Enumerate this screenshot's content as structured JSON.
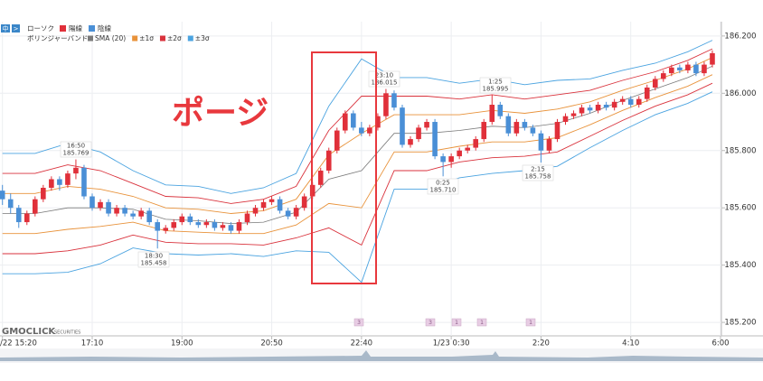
{
  "chart_data": {
    "type": "candlestick",
    "toolbar": [
      "中",
      ">"
    ],
    "legend_rows": [
      [
        "ローソク"
      ],
      [
        "ボリンジャーバンド"
      ]
    ],
    "bull": {
      "name": "陽線",
      "color": "#e0303a"
    },
    "bear": {
      "name": "陰線",
      "color": "#4a8fd6"
    },
    "callout": "ポージ",
    "watermark": [
      "GMOCLICK",
      "SECURITIES"
    ],
    "xlim": [
      -0.3,
      88
    ],
    "xticks": [
      {
        "value": 0,
        "label": "/22 15:20"
      },
      {
        "value": 11,
        "label": "17:10"
      },
      {
        "value": 22,
        "label": "19:00"
      },
      {
        "value": 33,
        "label": "20:50"
      },
      {
        "value": 44,
        "label": "22:40"
      },
      {
        "value": 55,
        "label": "1/23 0:30"
      },
      {
        "value": 66,
        "label": "2:20"
      },
      {
        "value": 77,
        "label": "4:10"
      },
      {
        "value": 88,
        "label": "6:00"
      }
    ],
    "ylim": [
      185.153,
      186.25
    ],
    "yticks": [
      {
        "value": 186.2,
        "label": "186.200"
      },
      {
        "value": 186.0,
        "label": "186.000"
      },
      {
        "value": 185.8,
        "label": "185.800"
      },
      {
        "value": 185.6,
        "label": "185.600"
      },
      {
        "value": 185.4,
        "label": "185.400"
      },
      {
        "value": 185.2,
        "label": "185.200"
      }
    ],
    "grid": true,
    "candles": {
      "x": [
        0,
        1,
        2,
        3,
        4,
        5,
        6,
        7,
        8,
        9,
        10,
        11,
        12,
        13,
        14,
        15,
        16,
        17,
        18,
        19,
        20,
        21,
        22,
        23,
        24,
        25,
        26,
        27,
        28,
        29,
        30,
        31,
        32,
        33,
        34,
        35,
        36,
        37,
        38,
        39,
        40,
        41,
        42,
        43,
        44,
        45,
        46,
        47,
        48,
        49,
        50,
        51,
        52,
        53,
        54,
        55,
        56,
        57,
        58,
        59,
        60,
        61,
        62,
        63,
        64,
        65,
        66,
        67,
        68,
        69,
        70,
        71,
        72,
        73,
        74,
        75,
        76,
        77,
        78,
        79,
        80,
        81,
        82,
        83,
        84,
        85,
        86,
        87
      ],
      "ohlc": [
        [
          185.66,
          185.68,
          185.61,
          185.63
        ],
        [
          185.63,
          185.65,
          185.58,
          185.6
        ],
        [
          185.6,
          185.61,
          185.53,
          185.55
        ],
        [
          185.55,
          185.59,
          185.54,
          185.58
        ],
        [
          185.58,
          185.64,
          185.57,
          185.63
        ],
        [
          185.63,
          185.68,
          185.62,
          185.67
        ],
        [
          185.67,
          185.71,
          185.66,
          185.7
        ],
        [
          185.7,
          185.71,
          185.66,
          185.68
        ],
        [
          185.68,
          185.73,
          185.67,
          185.72
        ],
        [
          185.72,
          185.769,
          185.7,
          185.74
        ],
        [
          185.74,
          185.75,
          185.63,
          185.64
        ],
        [
          185.64,
          185.65,
          185.59,
          185.6
        ],
        [
          185.6,
          185.63,
          185.59,
          185.62
        ],
        [
          185.62,
          185.63,
          185.57,
          185.58
        ],
        [
          185.58,
          185.61,
          185.57,
          185.6
        ],
        [
          185.6,
          185.61,
          185.57,
          185.58
        ],
        [
          185.58,
          185.59,
          185.56,
          185.57
        ],
        [
          185.57,
          185.6,
          185.56,
          185.59
        ],
        [
          185.59,
          185.6,
          185.54,
          185.55
        ],
        [
          185.55,
          185.56,
          185.458,
          185.52
        ],
        [
          185.52,
          185.54,
          185.51,
          185.53
        ],
        [
          185.53,
          185.56,
          185.52,
          185.55
        ],
        [
          185.55,
          185.58,
          185.54,
          185.57
        ],
        [
          185.57,
          185.58,
          185.54,
          185.55
        ],
        [
          185.55,
          185.56,
          185.53,
          185.54
        ],
        [
          185.54,
          185.56,
          185.53,
          185.55
        ],
        [
          185.55,
          185.56,
          185.52,
          185.53
        ],
        [
          185.53,
          185.55,
          185.52,
          185.54
        ],
        [
          185.54,
          185.55,
          185.51,
          185.52
        ],
        [
          185.52,
          185.56,
          185.51,
          185.55
        ],
        [
          185.55,
          185.59,
          185.54,
          185.58
        ],
        [
          185.58,
          185.61,
          185.57,
          185.6
        ],
        [
          185.6,
          185.63,
          185.59,
          185.62
        ],
        [
          185.62,
          185.64,
          185.61,
          185.63
        ],
        [
          185.63,
          185.64,
          185.58,
          185.59
        ],
        [
          185.59,
          185.6,
          185.56,
          185.57
        ],
        [
          185.57,
          185.61,
          185.56,
          185.6
        ],
        [
          185.6,
          185.65,
          185.59,
          185.64
        ],
        [
          185.64,
          185.69,
          185.63,
          185.68
        ],
        [
          185.68,
          185.74,
          185.67,
          185.73
        ],
        [
          185.73,
          185.81,
          185.72,
          185.8
        ],
        [
          185.8,
          185.88,
          185.79,
          185.87
        ],
        [
          185.87,
          185.94,
          185.86,
          185.93
        ],
        [
          185.93,
          185.94,
          185.87,
          185.88
        ],
        [
          185.88,
          185.9,
          185.85,
          185.86
        ],
        [
          185.86,
          185.89,
          185.85,
          185.88
        ],
        [
          185.88,
          185.93,
          185.87,
          185.92
        ],
        [
          185.92,
          186.015,
          185.91,
          186.0
        ],
        [
          186.0,
          186.01,
          185.94,
          185.95
        ],
        [
          185.95,
          185.96,
          185.81,
          185.82
        ],
        [
          185.82,
          185.85,
          185.81,
          185.84
        ],
        [
          185.84,
          185.89,
          185.83,
          185.88
        ],
        [
          185.88,
          185.91,
          185.87,
          185.9
        ],
        [
          185.9,
          185.91,
          185.77,
          185.78
        ],
        [
          185.78,
          185.79,
          185.71,
          185.76
        ],
        [
          185.76,
          185.79,
          185.74,
          185.78
        ],
        [
          185.78,
          185.81,
          185.77,
          185.8
        ],
        [
          185.8,
          185.82,
          185.79,
          185.81
        ],
        [
          185.81,
          185.85,
          185.8,
          185.84
        ],
        [
          185.84,
          185.91,
          185.83,
          185.9
        ],
        [
          185.9,
          185.995,
          185.89,
          185.96
        ],
        [
          185.96,
          185.97,
          185.91,
          185.92
        ],
        [
          185.92,
          185.93,
          185.85,
          185.86
        ],
        [
          185.86,
          185.91,
          185.85,
          185.9
        ],
        [
          185.9,
          185.91,
          185.87,
          185.88
        ],
        [
          185.88,
          185.89,
          185.85,
          185.86
        ],
        [
          185.86,
          185.87,
          185.758,
          185.8
        ],
        [
          185.8,
          185.85,
          185.79,
          185.84
        ],
        [
          185.84,
          185.91,
          185.83,
          185.9
        ],
        [
          185.9,
          185.93,
          185.89,
          185.92
        ],
        [
          185.92,
          185.94,
          185.91,
          185.93
        ],
        [
          185.93,
          185.96,
          185.92,
          185.95
        ],
        [
          185.95,
          185.96,
          185.93,
          185.94
        ],
        [
          185.94,
          185.97,
          185.93,
          185.96
        ],
        [
          185.96,
          185.97,
          185.94,
          185.95
        ],
        [
          185.95,
          185.98,
          185.94,
          185.97
        ],
        [
          185.97,
          185.99,
          185.96,
          185.98
        ],
        [
          185.98,
          185.99,
          185.95,
          185.96
        ],
        [
          185.96,
          185.99,
          185.95,
          185.98
        ],
        [
          185.98,
          186.03,
          185.97,
          186.02
        ],
        [
          186.02,
          186.06,
          186.01,
          186.05
        ],
        [
          186.05,
          186.08,
          186.04,
          186.07
        ],
        [
          186.07,
          186.1,
          186.06,
          186.09
        ],
        [
          186.09,
          186.1,
          186.07,
          186.08
        ],
        [
          186.08,
          186.11,
          186.07,
          186.1
        ],
        [
          186.1,
          186.11,
          186.06,
          186.07
        ],
        [
          186.07,
          186.11,
          186.06,
          186.1
        ],
        [
          186.1,
          186.15,
          186.09,
          186.14
        ]
      ]
    },
    "band_x": [
      0,
      4,
      8,
      12,
      16,
      20,
      24,
      28,
      32,
      36,
      40,
      44,
      48,
      52,
      56,
      60,
      64,
      68,
      72,
      76,
      80,
      84,
      87
    ],
    "series": [
      {
        "name": "SMA (20)",
        "color": "#7a7a7a",
        "values": [
          185.58,
          185.58,
          185.6,
          185.6,
          185.595,
          185.56,
          185.555,
          185.545,
          185.55,
          185.585,
          185.7,
          185.73,
          185.86,
          185.86,
          185.87,
          185.885,
          185.88,
          185.895,
          185.93,
          185.975,
          186.015,
          186.055,
          186.095
        ]
      },
      {
        "name": "±1σ",
        "color": "#e8923a",
        "upper": [
          185.65,
          185.65,
          185.675,
          185.665,
          185.64,
          185.6,
          185.595,
          185.58,
          185.59,
          185.63,
          185.785,
          185.86,
          185.925,
          185.925,
          185.925,
          185.94,
          185.93,
          185.945,
          185.97,
          186.01,
          186.045,
          186.085,
          186.125
        ],
        "lower": [
          185.51,
          185.51,
          185.525,
          185.535,
          185.55,
          185.52,
          185.515,
          185.51,
          185.51,
          185.54,
          185.615,
          185.6,
          185.795,
          185.795,
          185.815,
          185.83,
          185.83,
          185.845,
          185.89,
          185.94,
          185.985,
          186.025,
          186.065
        ]
      },
      {
        "name": "±2σ",
        "color": "#d9323c",
        "upper": [
          185.72,
          185.72,
          185.75,
          185.73,
          185.685,
          185.64,
          185.635,
          185.615,
          185.63,
          185.675,
          185.87,
          185.99,
          185.99,
          185.99,
          185.98,
          185.995,
          185.98,
          185.995,
          186.01,
          186.045,
          186.075,
          186.115,
          186.155
        ],
        "lower": [
          185.44,
          185.44,
          185.45,
          185.47,
          185.505,
          185.48,
          185.475,
          185.475,
          185.47,
          185.495,
          185.53,
          185.47,
          185.73,
          185.73,
          185.76,
          185.775,
          185.78,
          185.795,
          185.85,
          185.905,
          185.955,
          185.995,
          186.035
        ]
      },
      {
        "name": "±3σ",
        "color": "#4aa3e0",
        "upper": [
          185.79,
          185.79,
          185.825,
          185.795,
          185.73,
          185.68,
          185.675,
          185.65,
          185.67,
          185.72,
          185.955,
          186.12,
          186.055,
          186.055,
          186.035,
          186.05,
          186.03,
          186.045,
          186.05,
          186.08,
          186.105,
          186.145,
          186.185
        ],
        "lower": [
          185.37,
          185.37,
          185.375,
          185.405,
          185.46,
          185.44,
          185.435,
          185.44,
          185.43,
          185.45,
          185.445,
          185.34,
          185.665,
          185.665,
          185.705,
          185.72,
          185.73,
          185.745,
          185.81,
          185.87,
          185.925,
          185.965,
          186.005
        ]
      }
    ],
    "annotations": [
      {
        "time": "16:50",
        "price": "185.769"
      },
      {
        "time": "18:30",
        "price": "185.458"
      },
      {
        "time": "23:10",
        "price": "186.015"
      },
      {
        "time": "0:25",
        "price": "185.710"
      },
      {
        "time": "1:25",
        "price": "185.995"
      },
      {
        "time": "2:15",
        "price": "185.758"
      }
    ],
    "events": [
      "3",
      "3",
      "1",
      "1",
      "1"
    ]
  }
}
